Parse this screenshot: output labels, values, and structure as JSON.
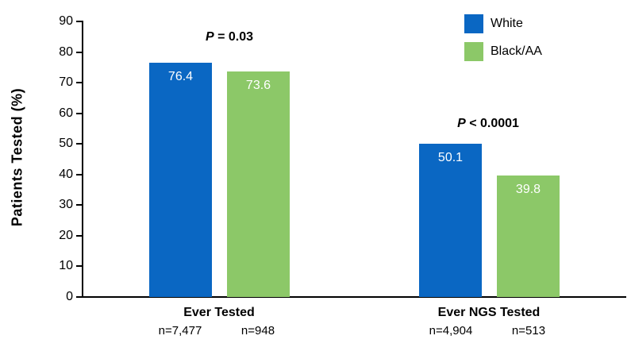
{
  "chart_data": {
    "type": "bar",
    "title": "",
    "xlabel": "",
    "ylabel": "Patients Tested (%)",
    "ylim": [
      0,
      90
    ],
    "yticks": [
      0,
      10,
      20,
      30,
      40,
      50,
      60,
      70,
      80,
      90
    ],
    "grid": false,
    "legend_position": "top-right",
    "categories": [
      "Ever Tested",
      "Ever NGS Tested"
    ],
    "series": [
      {
        "name": "White",
        "color": "#0A67C3",
        "values": [
          76.4,
          50.1
        ],
        "n_labels": [
          "n=7,477",
          "n=4,904"
        ]
      },
      {
        "name": "Black/AA",
        "color": "#8CC868",
        "values": [
          73.6,
          39.8
        ],
        "n_labels": [
          "n=948",
          "n=513"
        ]
      }
    ],
    "annotations": [
      {
        "italic": "P",
        "text": " = 0.03"
      },
      {
        "italic": "P",
        "text": " < 0.0001"
      }
    ]
  }
}
